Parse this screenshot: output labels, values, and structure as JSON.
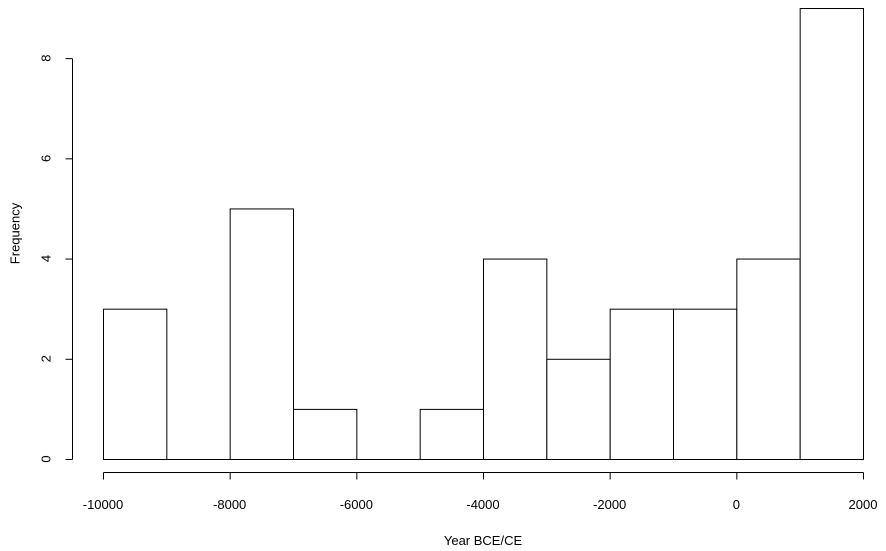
{
  "chart_data": {
    "type": "bar",
    "title": "",
    "xlabel": "Year BCE/CE",
    "ylabel": "Frequency",
    "bins": [
      {
        "start": -10000,
        "end": -9000,
        "count": 3
      },
      {
        "start": -9000,
        "end": -8000,
        "count": 0
      },
      {
        "start": -8000,
        "end": -7000,
        "count": 5
      },
      {
        "start": -7000,
        "end": -6000,
        "count": 1
      },
      {
        "start": -6000,
        "end": -5000,
        "count": 0
      },
      {
        "start": -5000,
        "end": -4000,
        "count": 1
      },
      {
        "start": -4000,
        "end": -3000,
        "count": 4
      },
      {
        "start": -3000,
        "end": -2000,
        "count": 2
      },
      {
        "start": -2000,
        "end": -1000,
        "count": 3
      },
      {
        "start": -1000,
        "end": 0,
        "count": 3
      },
      {
        "start": 0,
        "end": 1000,
        "count": 4
      },
      {
        "start": 1000,
        "end": 2000,
        "count": 9
      }
    ],
    "xlim": [
      -10000,
      2000
    ],
    "ylim": [
      0,
      9
    ],
    "x_ticks": [
      -10000,
      -8000,
      -6000,
      -4000,
      -2000,
      0,
      2000
    ],
    "y_ticks": [
      0,
      2,
      4,
      6,
      8
    ],
    "grid": false,
    "colors": {
      "bar_fill": "#ffffff",
      "bar_stroke": "#000000"
    }
  }
}
